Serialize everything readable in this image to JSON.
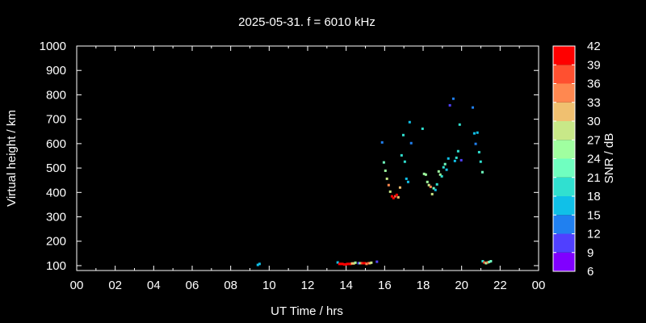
{
  "chart_data": {
    "type": "scatter",
    "title": "2025-05-31. f = 6010 kHz",
    "xlabel": "UT Time / hrs",
    "ylabel": "Virtual height / km",
    "colorbar_label": "SNR / dB",
    "xlim": [
      0,
      24
    ],
    "ylim": [
      80,
      1000
    ],
    "xticks": [
      "00",
      "02",
      "04",
      "06",
      "08",
      "10",
      "12",
      "14",
      "16",
      "18",
      "20",
      "22",
      "00"
    ],
    "yticks": [
      100,
      200,
      300,
      400,
      500,
      600,
      700,
      800,
      900,
      1000
    ],
    "colorbar_ticks": [
      6,
      9,
      12,
      15,
      18,
      21,
      24,
      27,
      30,
      33,
      36,
      39,
      42
    ],
    "colorbar_colors": [
      "#8000ff",
      "#5040ff",
      "#2080f0",
      "#10c0e8",
      "#30e0d0",
      "#70ffc0",
      "#a0ffa0",
      "#c8e888",
      "#f0c070",
      "#ff8850",
      "#ff5030",
      "#ff0000"
    ],
    "points_fields": [
      "hour",
      "height_km",
      "snr_db"
    ],
    "points": [
      [
        9.41,
        103,
        16
      ],
      [
        9.5,
        107,
        16
      ],
      [
        13.56,
        113,
        16
      ],
      [
        13.65,
        107,
        40
      ],
      [
        13.73,
        107,
        40
      ],
      [
        13.81,
        107,
        40
      ],
      [
        13.9,
        105,
        40
      ],
      [
        13.98,
        105,
        40
      ],
      [
        14.06,
        107,
        40
      ],
      [
        14.15,
        107,
        40
      ],
      [
        14.23,
        107,
        40
      ],
      [
        14.31,
        109,
        31
      ],
      [
        14.4,
        109,
        31
      ],
      [
        14.48,
        112,
        25
      ],
      [
        14.65,
        110,
        10
      ],
      [
        14.73,
        110,
        25
      ],
      [
        14.81,
        110,
        38
      ],
      [
        14.9,
        110,
        40
      ],
      [
        14.98,
        110,
        40
      ],
      [
        15.06,
        107,
        35
      ],
      [
        15.15,
        110,
        37
      ],
      [
        15.23,
        110,
        31
      ],
      [
        15.31,
        112,
        28
      ],
      [
        15.6,
        116,
        10
      ],
      [
        15.87,
        605,
        14
      ],
      [
        15.96,
        523,
        23
      ],
      [
        16.04,
        489,
        26
      ],
      [
        16.12,
        456,
        28
      ],
      [
        16.21,
        430,
        35
      ],
      [
        16.29,
        403,
        28
      ],
      [
        16.38,
        384,
        40
      ],
      [
        16.46,
        377,
        40
      ],
      [
        16.55,
        384,
        36
      ],
      [
        16.63,
        390,
        40
      ],
      [
        16.71,
        380,
        32
      ],
      [
        16.8,
        420,
        32
      ],
      [
        16.88,
        552,
        20
      ],
      [
        16.97,
        635,
        20
      ],
      [
        17.05,
        526,
        20
      ],
      [
        17.13,
        456,
        17
      ],
      [
        17.22,
        443,
        17
      ],
      [
        17.3,
        688,
        17
      ],
      [
        17.38,
        602,
        14
      ],
      [
        17.97,
        661,
        20
      ],
      [
        18.05,
        476,
        26
      ],
      [
        18.14,
        473,
        25
      ],
      [
        18.22,
        443,
        24
      ],
      [
        18.3,
        430,
        28
      ],
      [
        18.39,
        423,
        35
      ],
      [
        18.47,
        393,
        29
      ],
      [
        18.55,
        417,
        21
      ],
      [
        18.64,
        410,
        17
      ],
      [
        18.72,
        433,
        20
      ],
      [
        18.81,
        486,
        24
      ],
      [
        18.89,
        473,
        26
      ],
      [
        18.97,
        466,
        20
      ],
      [
        19.06,
        503,
        20
      ],
      [
        19.14,
        516,
        22
      ],
      [
        19.22,
        493,
        17
      ],
      [
        19.31,
        539,
        16
      ],
      [
        19.39,
        757,
        10
      ],
      [
        19.57,
        784,
        13
      ],
      [
        19.65,
        529,
        17
      ],
      [
        19.73,
        542,
        20
      ],
      [
        19.82,
        569,
        20
      ],
      [
        19.9,
        678,
        20
      ],
      [
        19.98,
        532,
        10
      ],
      [
        20.58,
        748,
        13
      ],
      [
        20.66,
        642,
        16
      ],
      [
        20.73,
        599,
        14
      ],
      [
        20.82,
        645,
        16
      ],
      [
        20.91,
        565,
        20
      ],
      [
        20.99,
        526,
        20
      ],
      [
        21.08,
        483,
        23
      ],
      [
        21.1,
        118,
        20
      ],
      [
        21.18,
        113,
        36
      ],
      [
        21.27,
        110,
        25
      ],
      [
        21.35,
        113,
        33
      ],
      [
        21.43,
        115,
        22
      ],
      [
        21.52,
        118,
        23
      ]
    ]
  }
}
